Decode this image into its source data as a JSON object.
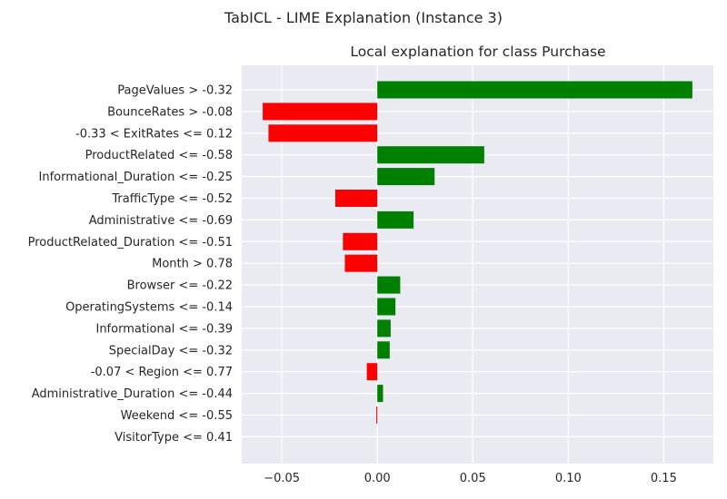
{
  "figure": {
    "suptitle": "TabICL - LIME Explanation (Instance 3)"
  },
  "chart_data": {
    "type": "bar",
    "orientation": "horizontal",
    "title": "Local explanation for class Purchase",
    "xlabel": "",
    "ylabel": "",
    "xlim": [
      -0.071,
      0.176
    ],
    "xticks": [
      -0.05,
      0.0,
      0.05,
      0.1,
      0.15
    ],
    "xtick_labels": [
      "−0.05",
      "0.00",
      "0.05",
      "0.10",
      "0.15"
    ],
    "grid": true,
    "positive_color": "#008000",
    "negative_color": "#ff0000",
    "background_color": "#eaeaf2",
    "categories": [
      "PageValues > -0.32",
      "BounceRates > -0.08",
      "-0.33 < ExitRates <= 0.12",
      "ProductRelated <= -0.58",
      "Informational_Duration <= -0.25",
      "TrafficType <= -0.52",
      "Administrative <= -0.69",
      "ProductRelated_Duration <= -0.51",
      "Month > 0.78",
      "Browser <= -0.22",
      "OperatingSystems <= -0.14",
      "Informational <= -0.39",
      "SpecialDay <= -0.32",
      "-0.07 < Region <= 0.77",
      "Administrative_Duration <= -0.44",
      "Weekend <= -0.55",
      "VisitorType <= 0.41"
    ],
    "values": [
      0.165,
      -0.06,
      -0.057,
      0.056,
      0.03,
      -0.022,
      0.019,
      -0.018,
      -0.017,
      0.012,
      0.0095,
      0.007,
      0.0065,
      -0.0055,
      0.003,
      -0.0005,
      0.0
    ]
  }
}
